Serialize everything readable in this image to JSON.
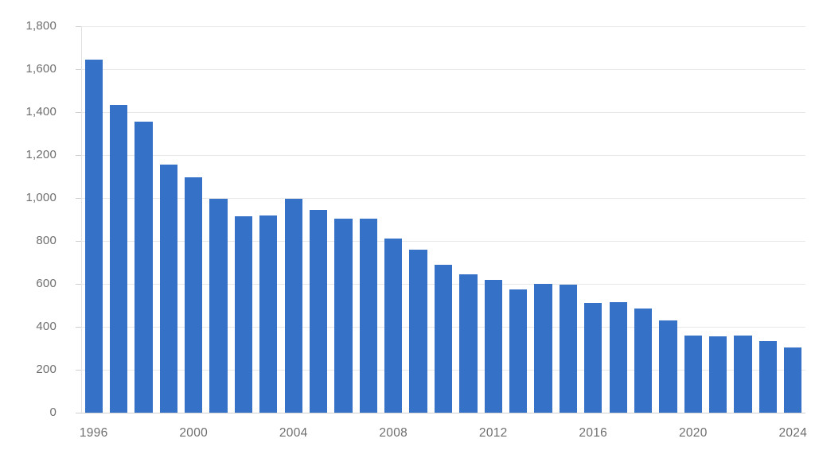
{
  "chart_data": {
    "type": "bar",
    "x": [
      1996,
      1997,
      1998,
      1999,
      2000,
      2001,
      2002,
      2003,
      2004,
      2005,
      2006,
      2007,
      2008,
      2009,
      2010,
      2011,
      2012,
      2013,
      2014,
      2015,
      2016,
      2017,
      2018,
      2019,
      2020,
      2021,
      2022,
      2023,
      2024
    ],
    "values": [
      1645,
      1435,
      1355,
      1155,
      1095,
      995,
      915,
      920,
      995,
      945,
      905,
      905,
      810,
      760,
      690,
      645,
      620,
      575,
      600,
      595,
      510,
      515,
      485,
      430,
      360,
      355,
      360,
      335,
      305
    ],
    "ylim": [
      0,
      1800
    ],
    "y_tick_values": [
      0,
      200,
      400,
      600,
      800,
      1000,
      1200,
      1400,
      1600,
      1800
    ],
    "y_tick_labels": [
      "0",
      "200",
      "400",
      "600",
      "800",
      "1,000",
      "1,200",
      "1,400",
      "1,600",
      "1,800"
    ],
    "x_tick_years": [
      1996,
      2000,
      2004,
      2008,
      2012,
      2016,
      2020,
      2024
    ],
    "x_tick_labels": [
      "1996",
      "2000",
      "2004",
      "2008",
      "2012",
      "2016",
      "2020",
      "2024"
    ],
    "grid": "horizontal",
    "legend": "none",
    "bar_color": "#3471c7",
    "grid_color": "#e8e8e8",
    "axis_color": "#d0d0d0",
    "tick_color": "#cfcfcf",
    "label_color": "#6e6e6e",
    "background_color": "#ffffff"
  }
}
